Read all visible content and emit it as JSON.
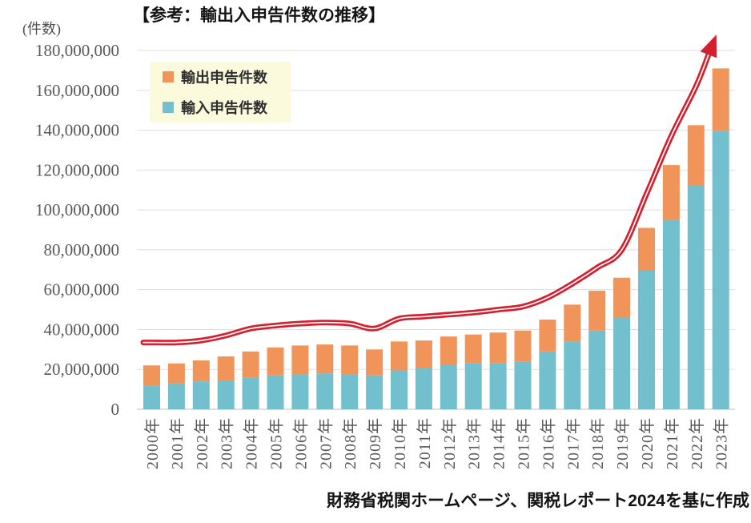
{
  "page": {
    "title": "【参考：輸出入申告件数の推移】",
    "unit_label": "(件数)",
    "source_caption": "財務省税関ホームページ、関税レポート2024を基に作成"
  },
  "legend": {
    "export_label": "輸出申告件数",
    "import_label": "輸入申告件数"
  },
  "colors": {
    "export": "#F0945A",
    "import": "#72BFCE",
    "trend_arrow": "#D2202F",
    "trend_arrow_highlight": "#FFFFFF",
    "legend_bg": "#FBFADC",
    "grid": "#DEDEDE",
    "axis_line": "#C9C9C9",
    "tick_text": "#595959",
    "heading_text": "#141414"
  },
  "chart_data": {
    "type": "bar",
    "stacked": true,
    "title": "【参考：輸出入申告件数の推移】",
    "ylabel": "(件数)",
    "categories": [
      "2000年",
      "2001年",
      "2002年",
      "2003年",
      "2004年",
      "2005年",
      "2006年",
      "2007年",
      "2008年",
      "2009年",
      "2010年",
      "2011年",
      "2012年",
      "2013年",
      "2014年",
      "2015年",
      "2016年",
      "2017年",
      "2018年",
      "2019年",
      "2020年",
      "2021年",
      "2022年",
      "2023年"
    ],
    "series": [
      {
        "name": "輸出申告件数",
        "color_key": "export",
        "values": [
          10000000,
          10000000,
          10500000,
          12000000,
          13000000,
          14000000,
          14500000,
          14500000,
          14500000,
          13000000,
          14500000,
          14000000,
          14000000,
          14500000,
          15500000,
          15500000,
          16000000,
          18500000,
          20000000,
          20000000,
          21500000,
          27500000,
          30000000,
          31500000
        ]
      },
      {
        "name": "輸入申告件数",
        "color_key": "import",
        "values": [
          12000000,
          13000000,
          14000000,
          14500000,
          16000000,
          17000000,
          17500000,
          18000000,
          17500000,
          17000000,
          19500000,
          20500000,
          22500000,
          23000000,
          23000000,
          24000000,
          29000000,
          34000000,
          39500000,
          46000000,
          69500000,
          95000000,
          112500000,
          139500000
        ]
      }
    ],
    "trend_arrow": {
      "values": [
        33500000,
        33500000,
        34500000,
        37000000,
        40500000,
        42000000,
        43000000,
        43500000,
        43000000,
        40500000,
        45500000,
        46500000,
        47500000,
        48500000,
        50000000,
        51500000,
        56000000,
        63000000,
        71000000,
        80000000,
        108000000,
        137000000,
        162000000,
        179000000
      ]
    },
    "ylim": [
      0,
      180000000
    ],
    "ytick_step": 20000000,
    "ytick_labels": [
      "0",
      "20,000,000",
      "40,000,000",
      "60,000,000",
      "80,000,000",
      "100,000,000",
      "120,000,000",
      "140,000,000",
      "160,000,000",
      "180,000,000"
    ],
    "grid": true,
    "legend_position": "top-left-inside"
  }
}
